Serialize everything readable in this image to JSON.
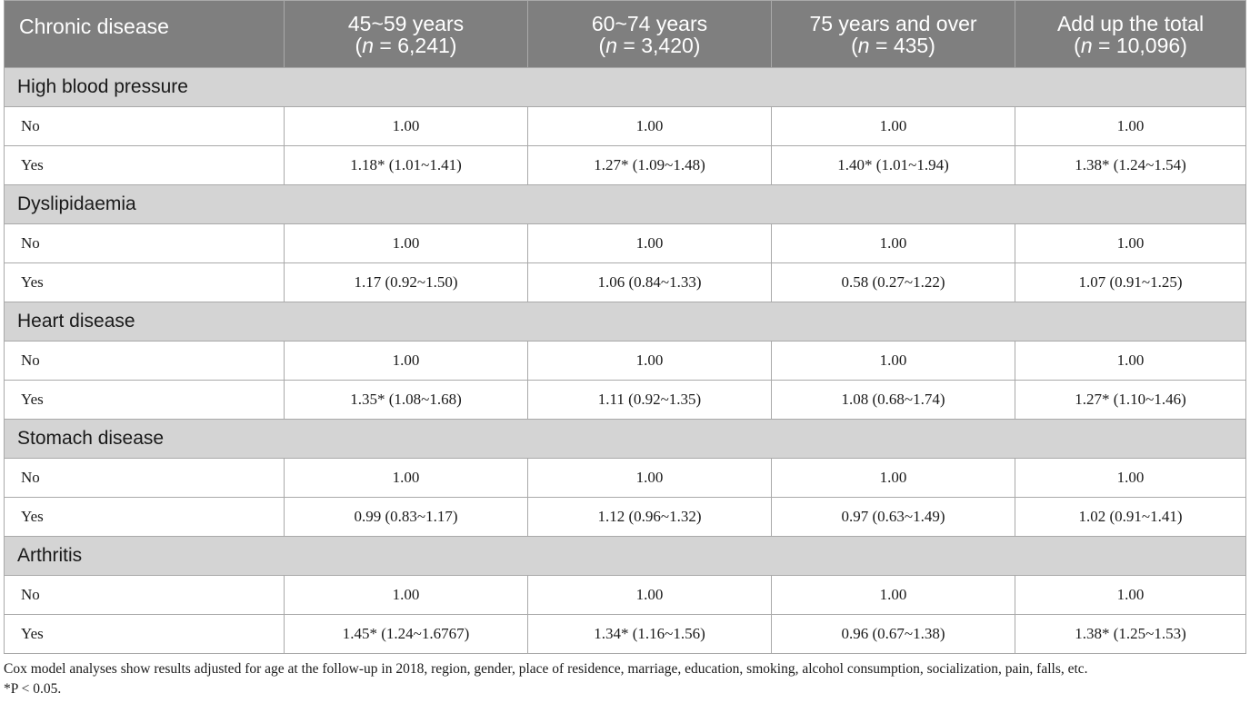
{
  "table": {
    "header": {
      "col0": "Chronic disease",
      "col1_label": "45~59 years",
      "col1_n": "6,241",
      "col2_label": "60~74 years",
      "col2_n": "3,420",
      "col3_label": "75 years and over",
      "col3_n": "435",
      "col4_label": "Add up the total",
      "col4_n": "10,096",
      "n_prefix": "n",
      "n_eq": " = "
    },
    "groups": [
      {
        "name": "High blood pressure",
        "rows": [
          {
            "label": "No",
            "c1": "1.00",
            "c2": "1.00",
            "c3": "1.00",
            "c4": "1.00"
          },
          {
            "label": "Yes",
            "c1": "1.18* (1.01~1.41)",
            "c2": "1.27* (1.09~1.48)",
            "c3": "1.40* (1.01~1.94)",
            "c4": "1.38* (1.24~1.54)"
          }
        ]
      },
      {
        "name": "Dyslipidaemia",
        "rows": [
          {
            "label": "No",
            "c1": "1.00",
            "c2": "1.00",
            "c3": "1.00",
            "c4": "1.00"
          },
          {
            "label": "Yes",
            "c1": "1.17 (0.92~1.50)",
            "c2": "1.06 (0.84~1.33)",
            "c3": "0.58 (0.27~1.22)",
            "c4": "1.07 (0.91~1.25)"
          }
        ]
      },
      {
        "name": "Heart disease",
        "rows": [
          {
            "label": "No",
            "c1": "1.00",
            "c2": "1.00",
            "c3": "1.00",
            "c4": "1.00"
          },
          {
            "label": "Yes",
            "c1": "1.35* (1.08~1.68)",
            "c2": "1.11 (0.92~1.35)",
            "c3": "1.08 (0.68~1.74)",
            "c4": "1.27* (1.10~1.46)"
          }
        ]
      },
      {
        "name": "Stomach disease",
        "rows": [
          {
            "label": "No",
            "c1": "1.00",
            "c2": "1.00",
            "c3": "1.00",
            "c4": "1.00"
          },
          {
            "label": "Yes",
            "c1": "0.99 (0.83~1.17)",
            "c2": "1.12 (0.96~1.32)",
            "c3": "0.97 (0.63~1.49)",
            "c4": "1.02 (0.91~1.41)"
          }
        ]
      },
      {
        "name": "Arthritis",
        "rows": [
          {
            "label": "No",
            "c1": "1.00",
            "c2": "1.00",
            "c3": "1.00",
            "c4": "1.00"
          },
          {
            "label": "Yes",
            "c1": "1.45* (1.24~1.6767)",
            "c2": "1.34* (1.16~1.56)",
            "c3": "0.96 (0.67~1.38)",
            "c4": "1.38* (1.25~1.53)"
          }
        ]
      }
    ]
  },
  "notes": {
    "line1": "Cox model analyses show results adjusted for age at the follow-up in 2018, region, gender, place of residence, marriage, education, smoking, alcohol consumption, socialization, pain, falls, etc.",
    "line2": "*P < 0.05."
  },
  "colors": {
    "header_bg": "#7f7f7f",
    "group_bg": "#d4d4d4",
    "border": "#a9a9a9"
  }
}
